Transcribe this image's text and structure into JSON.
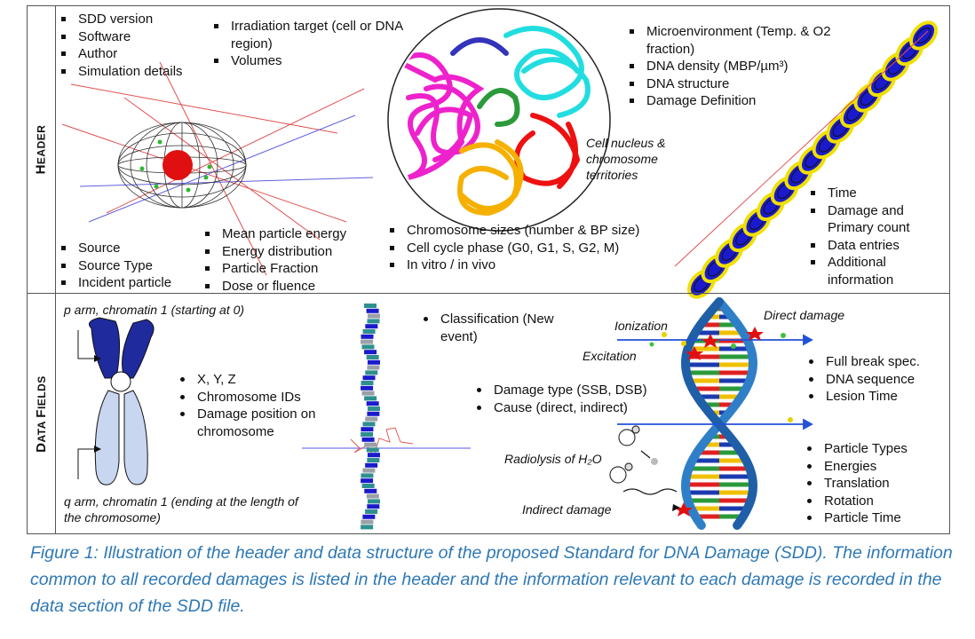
{
  "header": {
    "label": "Header",
    "bullets_tl": [
      "SDD version",
      "Software",
      "Author",
      "Simulation details"
    ],
    "bullets_tm": [
      "Irradiation target (cell or DNA region)",
      "Volumes"
    ],
    "bullets_tr": [
      "Microenvironment (Temp. & O2 fraction)",
      "DNA density (MBP/µm³)",
      "DNA structure",
      "Damage Definition"
    ],
    "bullets_bl": [
      "Source",
      "Source Type",
      "Incident particle"
    ],
    "bullets_bm1": [
      "Mean particle energy",
      "Energy distribution",
      "Particle Fraction",
      "Dose or fluence"
    ],
    "bullets_bm2": [
      "Chromosome sizes (number & BP size)",
      "Cell cycle phase (G0, G1, S, G2, M)",
      "In vitro / in vivo"
    ],
    "bullets_br": [
      "Time",
      "Damage and Primary count",
      "Data entries",
      "Additional information"
    ],
    "nucleus_label": "Cell nucleus & chromosome territories"
  },
  "data_fields": {
    "label": "Data Fields",
    "p_arm": "p arm, chromatin 1 (starting at 0)",
    "q_arm": "q arm, chromatin 1 (ending at the length of the chromosome)",
    "bullets_chrom": [
      "X, Y, Z",
      "Chromosome IDs",
      "Damage position on chromosome"
    ],
    "bullets_class": [
      "Classification (New event)"
    ],
    "bullets_damage": [
      "Damage type (SSB, DSB)",
      "Cause (direct, indirect)"
    ],
    "bullets_break": [
      "Full break spec.",
      "DNA sequence",
      "Lesion Time"
    ],
    "bullets_particle": [
      "Particle Types",
      "Energies",
      "Translation",
      "Rotation",
      "Particle Time"
    ],
    "ionization": "Ionization",
    "excitation": "Excitation",
    "direct_damage": "Direct damage",
    "radiolysis": "Radiolysis of H₂O",
    "indirect_damage": "Indirect damage"
  },
  "caption": "Figure 1: Illustration of the header and data structure of the proposed Standard for DNA Damage (SDD). The information common to all recorded damages is listed in the header and the information relevant to each damage is recorded in the data section of the SDD file.",
  "colors": {
    "caption": "#2e78b5",
    "chromosome_dark": "#1f2a9c",
    "chromosome_light": "#c9d6f0",
    "helix": "#2f7fc8",
    "track": "#2350d8"
  }
}
